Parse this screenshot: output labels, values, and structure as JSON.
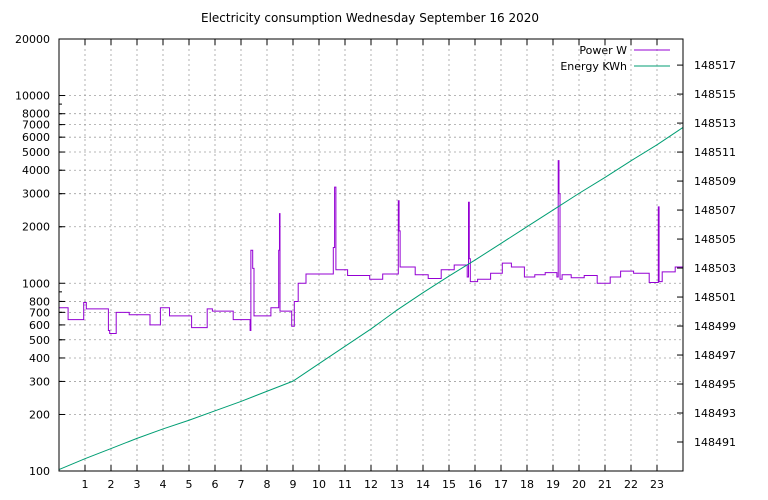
{
  "chart_data": {
    "type": "line",
    "title": "Electricity consumption Wednesday September 16 2020",
    "xlabel": "",
    "ylabel": "",
    "y2label": "",
    "xlim": [
      0,
      24
    ],
    "ylim": [
      100,
      20000
    ],
    "y_scale": "log",
    "y2lim": [
      148489,
      148518.8
    ],
    "grid": true,
    "legend_position": "top-right",
    "x_ticks": [
      1,
      2,
      3,
      4,
      5,
      6,
      7,
      8,
      9,
      10,
      11,
      12,
      13,
      14,
      15,
      16,
      17,
      18,
      19,
      20,
      21,
      22,
      23
    ],
    "y_ticks": [
      100,
      200,
      300,
      400,
      500,
      600,
      700,
      800,
      1000,
      2000,
      3000,
      4000,
      5000,
      6000,
      7000,
      8000,
      10000,
      20000
    ],
    "y2_ticks": [
      148491,
      148493,
      148495,
      148497,
      148499,
      148501,
      148503,
      148505,
      148507,
      148509,
      148511,
      148513,
      148515,
      148517
    ],
    "series": [
      {
        "name": "Power W",
        "axis": "y",
        "color": "#9400d3",
        "points": [
          [
            0.0,
            740
          ],
          [
            0.35,
            740
          ],
          [
            0.35,
            640
          ],
          [
            0.95,
            640
          ],
          [
            0.95,
            790
          ],
          [
            1.05,
            790
          ],
          [
            1.05,
            730
          ],
          [
            1.9,
            730
          ],
          [
            1.9,
            560
          ],
          [
            1.95,
            560
          ],
          [
            1.95,
            540
          ],
          [
            2.2,
            540
          ],
          [
            2.2,
            700
          ],
          [
            2.7,
            700
          ],
          [
            2.7,
            680
          ],
          [
            3.5,
            680
          ],
          [
            3.5,
            600
          ],
          [
            3.9,
            600
          ],
          [
            3.9,
            740
          ],
          [
            4.25,
            740
          ],
          [
            4.25,
            670
          ],
          [
            5.1,
            670
          ],
          [
            5.1,
            580
          ],
          [
            5.7,
            580
          ],
          [
            5.7,
            730
          ],
          [
            5.9,
            730
          ],
          [
            5.9,
            710
          ],
          [
            6.7,
            710
          ],
          [
            6.7,
            640
          ],
          [
            7.35,
            640
          ],
          [
            7.35,
            560
          ],
          [
            7.38,
            560
          ],
          [
            7.38,
            1500
          ],
          [
            7.45,
            1500
          ],
          [
            7.45,
            1200
          ],
          [
            7.5,
            1200
          ],
          [
            7.5,
            670
          ],
          [
            8.15,
            670
          ],
          [
            8.15,
            740
          ],
          [
            8.45,
            740
          ],
          [
            8.45,
            1500
          ],
          [
            8.48,
            1500
          ],
          [
            8.48,
            2350
          ],
          [
            8.5,
            2350
          ],
          [
            8.5,
            710
          ],
          [
            8.95,
            710
          ],
          [
            8.95,
            590
          ],
          [
            9.05,
            590
          ],
          [
            9.05,
            800
          ],
          [
            9.2,
            800
          ],
          [
            9.2,
            1000
          ],
          [
            9.5,
            1000
          ],
          [
            9.5,
            1120
          ],
          [
            10.55,
            1120
          ],
          [
            10.55,
            1550
          ],
          [
            10.6,
            1550
          ],
          [
            10.6,
            3250
          ],
          [
            10.65,
            3250
          ],
          [
            10.65,
            1180
          ],
          [
            11.1,
            1180
          ],
          [
            11.1,
            1100
          ],
          [
            11.95,
            1100
          ],
          [
            11.95,
            1050
          ],
          [
            12.45,
            1050
          ],
          [
            12.45,
            1120
          ],
          [
            13.05,
            1120
          ],
          [
            13.05,
            2750
          ],
          [
            13.08,
            2750
          ],
          [
            13.08,
            1900
          ],
          [
            13.12,
            1900
          ],
          [
            13.12,
            1220
          ],
          [
            13.7,
            1220
          ],
          [
            13.7,
            1110
          ],
          [
            14.2,
            1110
          ],
          [
            14.2,
            1060
          ],
          [
            14.7,
            1060
          ],
          [
            14.7,
            1180
          ],
          [
            15.2,
            1180
          ],
          [
            15.2,
            1250
          ],
          [
            15.7,
            1250
          ],
          [
            15.7,
            1080
          ],
          [
            15.75,
            1080
          ],
          [
            15.75,
            2700
          ],
          [
            15.78,
            2700
          ],
          [
            15.78,
            1350
          ],
          [
            15.82,
            1350
          ],
          [
            15.82,
            1020
          ],
          [
            16.1,
            1020
          ],
          [
            16.1,
            1050
          ],
          [
            16.6,
            1050
          ],
          [
            16.6,
            1130
          ],
          [
            17.05,
            1130
          ],
          [
            17.05,
            1280
          ],
          [
            17.4,
            1280
          ],
          [
            17.4,
            1220
          ],
          [
            17.9,
            1220
          ],
          [
            17.9,
            1080
          ],
          [
            18.3,
            1080
          ],
          [
            18.3,
            1110
          ],
          [
            18.7,
            1110
          ],
          [
            18.7,
            1140
          ],
          [
            19.15,
            1140
          ],
          [
            19.15,
            1080
          ],
          [
            19.2,
            1080
          ],
          [
            19.2,
            4500
          ],
          [
            19.23,
            4500
          ],
          [
            19.23,
            3000
          ],
          [
            19.27,
            3000
          ],
          [
            19.27,
            1050
          ],
          [
            19.35,
            1050
          ],
          [
            19.35,
            1110
          ],
          [
            19.7,
            1110
          ],
          [
            19.7,
            1070
          ],
          [
            20.2,
            1070
          ],
          [
            20.2,
            1100
          ],
          [
            20.7,
            1100
          ],
          [
            20.7,
            1000
          ],
          [
            21.2,
            1000
          ],
          [
            21.2,
            1080
          ],
          [
            21.6,
            1080
          ],
          [
            21.6,
            1160
          ],
          [
            22.1,
            1160
          ],
          [
            22.1,
            1130
          ],
          [
            22.7,
            1130
          ],
          [
            22.7,
            1010
          ],
          [
            23.05,
            1010
          ],
          [
            23.05,
            2550
          ],
          [
            23.08,
            2550
          ],
          [
            23.08,
            1020
          ],
          [
            23.2,
            1020
          ],
          [
            23.2,
            1150
          ],
          [
            23.7,
            1150
          ],
          [
            23.7,
            1220
          ],
          [
            24.0,
            1220
          ]
        ]
      },
      {
        "name": "Energy KWh",
        "axis": "y2",
        "color": "#009e73",
        "points": [
          [
            0.0,
            148489.1
          ],
          [
            1.0,
            148489.85
          ],
          [
            2.0,
            148490.55
          ],
          [
            3.0,
            148491.25
          ],
          [
            4.0,
            148491.9
          ],
          [
            5.0,
            148492.5
          ],
          [
            6.0,
            148493.15
          ],
          [
            7.0,
            148493.8
          ],
          [
            8.0,
            148494.5
          ],
          [
            9.0,
            148495.2
          ],
          [
            10.0,
            148496.4
          ],
          [
            11.0,
            148497.6
          ],
          [
            12.0,
            148498.8
          ],
          [
            13.0,
            148500.1
          ],
          [
            14.0,
            148501.3
          ],
          [
            15.0,
            148502.45
          ],
          [
            16.0,
            148503.55
          ],
          [
            17.0,
            148504.7
          ],
          [
            18.0,
            148505.85
          ],
          [
            19.0,
            148507.0
          ],
          [
            20.0,
            148508.15
          ],
          [
            21.0,
            148509.25
          ],
          [
            22.0,
            148510.4
          ],
          [
            23.0,
            148511.5
          ],
          [
            24.0,
            148512.7
          ]
        ]
      }
    ]
  }
}
